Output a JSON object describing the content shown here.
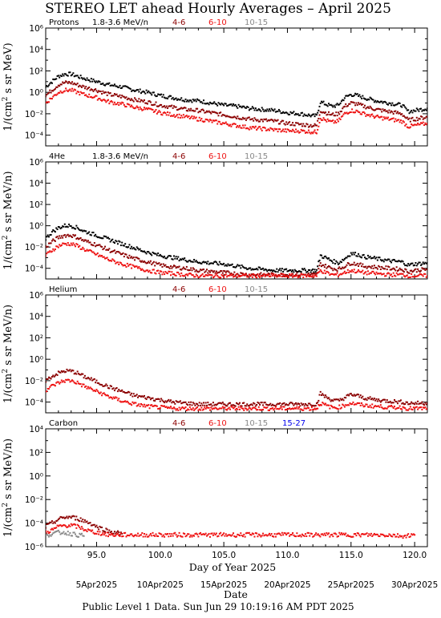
{
  "title": "STEREO LET ahead Hourly Averages – April 2025",
  "footer": "Public Level 1 Data. Sun Jun 29 10:19:16 AM PDT 2025",
  "x_axis": {
    "label": "Day of Year 2025",
    "range": [
      91,
      121
    ],
    "ticks": [
      95.0,
      100.0,
      105.0,
      110.0,
      115.0,
      120.0
    ],
    "tick_labels": [
      "95.0",
      "100.0",
      "105.0",
      "110.0",
      "115.0",
      "120.0"
    ],
    "date_label": "Date",
    "dates": [
      {
        "day": 95,
        "label": "5Apr2025"
      },
      {
        "day": 100,
        "label": "10Apr2025"
      },
      {
        "day": 105,
        "label": "15Apr2025"
      },
      {
        "day": 110,
        "label": "20Apr2025"
      },
      {
        "day": 115,
        "label": "25Apr2025"
      },
      {
        "day": 120,
        "label": "30Apr2025"
      }
    ]
  },
  "colors": {
    "black": "#000000",
    "darkred": "#8b0000",
    "red": "#ee1111",
    "gray": "#888888",
    "blue": "#0000ee"
  },
  "chart_data": [
    {
      "type": "scatter",
      "species": "Protons",
      "ylabel": "1/(cm² s sr MeV)",
      "ylabel_main": "1/(cm",
      "ylabel_sup": "2",
      "ylabel_rest": " s sr MeV)",
      "y_scale": "log",
      "ylim_exp": [
        -5,
        6
      ],
      "y_ticks": [
        "10⁻⁴",
        "10⁻²",
        "10⁰",
        "10²",
        "10⁴",
        "10⁶"
      ],
      "y_tick_exp": [
        -4,
        -2,
        0,
        2,
        4,
        6
      ],
      "legend": [
        {
          "label": "1.8-3.6 MeV/n",
          "color": "#000000"
        },
        {
          "label": "4-6",
          "color": "#8b0000"
        },
        {
          "label": "6-10",
          "color": "#ee1111"
        },
        {
          "label": "10-15",
          "color": "#888888"
        }
      ],
      "series": [
        {
          "name": "1.8-3.6 MeV/n",
          "color": "#000000",
          "x": [
            91,
            91.5,
            92,
            92.5,
            93,
            93.5,
            94,
            95,
            96,
            97,
            98,
            99,
            100,
            101,
            102,
            103,
            104,
            105,
            106,
            107,
            108,
            109,
            110,
            111,
            112,
            112.3,
            112.6,
            113,
            113.5,
            114,
            114.5,
            115,
            115.5,
            116,
            117,
            118,
            119,
            119.5,
            120,
            121
          ],
          "logy": [
            0.5,
            1.0,
            1.5,
            1.7,
            1.7,
            1.5,
            1.3,
            1.0,
            0.7,
            0.5,
            0.2,
            0.0,
            -0.3,
            -0.5,
            -0.7,
            -0.8,
            -1.0,
            -1.2,
            -1.3,
            -1.5,
            -1.6,
            -1.7,
            -1.9,
            -2.0,
            -2.2,
            -2.2,
            -0.9,
            -1.1,
            -1.3,
            -1.2,
            -0.5,
            -0.2,
            -0.3,
            -0.5,
            -0.8,
            -1.0,
            -1.2,
            -1.8,
            -1.7,
            -1.5
          ]
        },
        {
          "name": "4-6",
          "color": "#8b0000",
          "x": [
            91,
            91.5,
            92,
            92.5,
            93,
            93.5,
            94,
            95,
            96,
            97,
            98,
            99,
            100,
            101,
            102,
            103,
            104,
            105,
            106,
            107,
            108,
            109,
            110,
            111,
            112,
            112.3,
            112.6,
            113,
            113.5,
            114,
            114.5,
            115,
            115.5,
            116,
            117,
            118,
            119,
            119.5,
            120,
            121
          ],
          "logy": [
            -0.3,
            0.2,
            0.7,
            0.9,
            0.9,
            0.7,
            0.5,
            0.2,
            -0.2,
            -0.4,
            -0.7,
            -0.9,
            -1.2,
            -1.4,
            -1.6,
            -1.7,
            -1.9,
            -2.1,
            -2.3,
            -2.5,
            -2.6,
            -2.7,
            -2.9,
            -3.0,
            -3.1,
            -3.1,
            -1.7,
            -1.9,
            -2.1,
            -2.0,
            -1.3,
            -1.0,
            -1.1,
            -1.3,
            -1.6,
            -1.8,
            -2.0,
            -2.6,
            -2.5,
            -2.3
          ]
        },
        {
          "name": "6-10",
          "color": "#ee1111",
          "x": [
            91,
            91.5,
            92,
            92.5,
            93,
            93.5,
            94,
            95,
            96,
            97,
            98,
            99,
            100,
            101,
            102,
            103,
            104,
            105,
            106,
            107,
            108,
            109,
            110,
            111,
            112,
            112.3,
            112.6,
            113,
            113.5,
            114,
            114.5,
            115,
            115.5,
            116,
            117,
            118,
            119,
            119.5,
            120,
            121
          ],
          "logy": [
            -1.0,
            -0.5,
            0.0,
            0.2,
            0.2,
            0.0,
            -0.2,
            -0.5,
            -0.9,
            -1.1,
            -1.4,
            -1.6,
            -1.9,
            -2.1,
            -2.3,
            -2.5,
            -2.7,
            -2.9,
            -3.1,
            -3.3,
            -3.4,
            -3.5,
            -3.6,
            -3.6,
            -3.7,
            -3.7,
            -2.4,
            -2.6,
            -2.8,
            -2.7,
            -2.0,
            -1.7,
            -1.8,
            -2.0,
            -2.3,
            -2.5,
            -2.7,
            -3.2,
            -3.1,
            -2.9
          ]
        }
      ]
    },
    {
      "type": "scatter",
      "species": "4He",
      "ylabel": "1/(cm² s sr MeV/n)",
      "ylabel_main": "1/(cm",
      "ylabel_sup": "2",
      "ylabel_rest": " s sr MeV/n)",
      "y_scale": "log",
      "ylim_exp": [
        -5,
        6
      ],
      "y_ticks": [
        "10⁻⁴",
        "10⁻²",
        "10⁰",
        "10²",
        "10⁴",
        "10⁶"
      ],
      "y_tick_exp": [
        -4,
        -2,
        0,
        2,
        4,
        6
      ],
      "legend": [
        {
          "label": "1.8-3.6 MeV/n",
          "color": "#000000"
        },
        {
          "label": "4-6",
          "color": "#8b0000"
        },
        {
          "label": "6-10",
          "color": "#ee1111"
        },
        {
          "label": "10-15",
          "color": "#888888"
        }
      ],
      "series": [
        {
          "name": "1.8-3.6 MeV/n",
          "color": "#000000",
          "x": [
            91,
            91.5,
            92,
            92.5,
            93,
            93.5,
            94,
            95,
            96,
            97,
            98,
            99,
            100,
            101,
            102,
            103,
            104,
            105,
            106,
            107,
            108,
            109,
            110,
            111,
            112,
            112.3,
            112.6,
            113,
            113.5,
            114,
            114.5,
            115,
            115.5,
            116,
            117,
            118,
            119,
            119.5,
            120,
            121
          ],
          "logy": [
            -1.2,
            -0.6,
            -0.2,
            0.0,
            0.0,
            -0.2,
            -0.5,
            -0.9,
            -1.3,
            -1.7,
            -2.1,
            -2.5,
            -2.8,
            -3.0,
            -3.2,
            -3.4,
            -3.5,
            -3.6,
            -3.8,
            -4.0,
            -4.1,
            -4.2,
            -4.2,
            -4.2,
            -4.2,
            -4.2,
            -2.8,
            -3.0,
            -3.3,
            -3.5,
            -3.1,
            -2.6,
            -2.7,
            -2.9,
            -3.1,
            -3.3,
            -3.4,
            -3.7,
            -3.6,
            -3.5
          ]
        },
        {
          "name": "4-6",
          "color": "#8b0000",
          "x": [
            91,
            91.5,
            92,
            92.5,
            93,
            93.5,
            94,
            95,
            96,
            97,
            98,
            99,
            100,
            101,
            102,
            103,
            104,
            105,
            106,
            107,
            108,
            109,
            110,
            111,
            112,
            112.3,
            112.6,
            113,
            113.5,
            114,
            114.5,
            115,
            115.5,
            116,
            117,
            118,
            119,
            119.5,
            120,
            121
          ],
          "logy": [
            -2.0,
            -1.5,
            -1.1,
            -0.9,
            -0.9,
            -1.1,
            -1.4,
            -1.8,
            -2.3,
            -2.7,
            -3.1,
            -3.4,
            -3.7,
            -3.9,
            -4.0,
            -4.2,
            -4.3,
            -4.4,
            -4.5,
            -4.6,
            -4.6,
            -4.6,
            -4.6,
            -4.6,
            -4.6,
            -4.6,
            -3.6,
            -3.8,
            -4.0,
            -4.1,
            -3.8,
            -3.5,
            -3.6,
            -3.8,
            -3.9,
            -4.0,
            -4.1,
            -4.3,
            -4.2,
            -4.1
          ]
        },
        {
          "name": "6-10",
          "color": "#ee1111",
          "x": [
            91,
            91.5,
            92,
            92.5,
            93,
            93.5,
            94,
            95,
            96,
            97,
            98,
            99,
            100,
            101,
            102,
            103,
            104,
            105,
            106,
            107,
            108,
            109,
            110,
            111,
            112,
            112.3,
            112.6,
            113,
            113.5,
            114,
            114.5,
            115,
            115.5,
            116,
            117,
            118,
            119,
            119.5,
            120,
            121
          ],
          "logy": [
            -2.8,
            -2.3,
            -1.9,
            -1.7,
            -1.7,
            -1.9,
            -2.2,
            -2.7,
            -3.2,
            -3.6,
            -3.9,
            -4.2,
            -4.4,
            -4.5,
            -4.6,
            -4.7,
            -4.7,
            -4.7,
            -4.7,
            -4.7,
            -4.7,
            -4.7,
            -4.7,
            -4.7,
            -4.7,
            -4.7,
            -4.2,
            -4.4,
            -4.6,
            -4.6,
            -4.4,
            -4.2,
            -4.3,
            -4.4,
            -4.5,
            -4.6,
            -4.6,
            -4.7,
            -4.7,
            -4.7
          ]
        }
      ]
    },
    {
      "type": "scatter",
      "species": "Helium",
      "ylabel": "1/(cm² s sr MeV/n)",
      "ylabel_main": "1/(cm",
      "ylabel_sup": "2",
      "ylabel_rest": " s sr MeV/n)",
      "y_scale": "log",
      "ylim_exp": [
        -5,
        6
      ],
      "y_ticks": [
        "10⁻⁴",
        "10⁻²",
        "10⁰",
        "10²",
        "10⁴",
        "10⁶"
      ],
      "y_tick_exp": [
        -4,
        -2,
        0,
        2,
        4,
        6
      ],
      "legend": [
        {
          "label": "4-6",
          "color": "#8b0000"
        },
        {
          "label": "6-10",
          "color": "#ee1111"
        },
        {
          "label": "10-15",
          "color": "#888888"
        }
      ],
      "series": [
        {
          "name": "4-6",
          "color": "#8b0000",
          "x": [
            91,
            91.5,
            92,
            92.5,
            93,
            93.5,
            94,
            95,
            96,
            97,
            98,
            99,
            100,
            101,
            102,
            103,
            104,
            105,
            106,
            107,
            108,
            109,
            110,
            111,
            112,
            112.3,
            112.6,
            113,
            113.5,
            114,
            114.5,
            115,
            115.5,
            116,
            117,
            118,
            119,
            119.5,
            120,
            121
          ],
          "logy": [
            -2.0,
            -1.6,
            -1.3,
            -1.1,
            -1.1,
            -1.3,
            -1.6,
            -2.1,
            -2.6,
            -3.0,
            -3.4,
            -3.6,
            -3.8,
            -4.0,
            -4.1,
            -4.2,
            -4.2,
            -4.2,
            -4.2,
            -4.2,
            -4.2,
            -4.2,
            -4.2,
            -4.2,
            -4.2,
            -4.2,
            -3.2,
            -3.5,
            -3.8,
            -3.9,
            -3.6,
            -3.3,
            -3.4,
            -3.6,
            -3.8,
            -3.9,
            -4.0,
            -4.1,
            -4.1,
            -4.1
          ]
        },
        {
          "name": "6-10",
          "color": "#ee1111",
          "x": [
            91,
            91.5,
            92,
            92.5,
            93,
            93.5,
            94,
            95,
            96,
            97,
            98,
            99,
            100,
            101,
            102,
            103,
            104,
            105,
            106,
            107,
            108,
            109,
            110,
            111,
            112,
            112.3,
            112.6,
            113,
            113.5,
            114,
            114.5,
            115,
            115.5,
            116,
            117,
            118,
            119,
            119.5,
            120,
            121
          ],
          "logy": [
            -2.9,
            -2.5,
            -2.2,
            -2.0,
            -2.0,
            -2.2,
            -2.5,
            -3.0,
            -3.5,
            -3.9,
            -4.2,
            -4.4,
            -4.5,
            -4.6,
            -4.6,
            -4.6,
            -4.6,
            -4.6,
            -4.6,
            -4.6,
            -4.6,
            -4.6,
            -4.6,
            -4.6,
            -4.6,
            -4.6,
            -4.1,
            -4.3,
            -4.5,
            -4.5,
            -4.3,
            -4.1,
            -4.2,
            -4.3,
            -4.4,
            -4.5,
            -4.5,
            -4.6,
            -4.6,
            -4.6
          ]
        }
      ]
    },
    {
      "type": "scatter",
      "species": "Carbon",
      "ylabel": "1/(cm² s sr MeV/n)",
      "ylabel_main": "1/(cm",
      "ylabel_sup": "2",
      "ylabel_rest": " s sr MeV/n)",
      "y_scale": "log",
      "ylim_exp": [
        -6,
        4
      ],
      "y_ticks": [
        "10⁻⁶",
        "10⁻⁴",
        "10⁻²",
        "10⁰",
        "10²",
        "10⁴"
      ],
      "y_tick_exp": [
        -6,
        -4,
        -2,
        0,
        2,
        4
      ],
      "legend": [
        {
          "label": "4-6",
          "color": "#8b0000"
        },
        {
          "label": "6-10",
          "color": "#ee1111"
        },
        {
          "label": "10-15",
          "color": "#888888"
        },
        {
          "label": "15-27",
          "color": "#0000ee"
        }
      ],
      "series": [
        {
          "name": "4-6",
          "color": "#8b0000",
          "x": [
            91,
            91.5,
            92,
            92.5,
            93,
            93.5,
            94,
            94.5,
            95,
            95.5,
            96,
            96.5,
            97
          ],
          "logy": [
            -4.3,
            -4.0,
            -3.7,
            -3.5,
            -3.5,
            -3.6,
            -3.8,
            -4.0,
            -4.3,
            -4.5,
            -4.7,
            -4.8,
            -4.9
          ]
        },
        {
          "name": "6-10",
          "color": "#ee1111",
          "x": [
            91,
            91.5,
            92,
            92.5,
            93,
            93.5,
            94,
            94.5,
            95,
            95.5,
            96,
            97,
            98,
            99,
            100,
            106,
            112.5,
            113,
            114,
            115,
            116,
            117,
            118,
            119,
            120
          ],
          "logy": [
            -4.8,
            -4.6,
            -4.3,
            -4.2,
            -4.2,
            -4.3,
            -4.5,
            -4.7,
            -4.8,
            -4.9,
            -5.0,
            -5.0,
            -5.0,
            -5.0,
            -5.0,
            -5.0,
            -5.0,
            -5.0,
            -5.0,
            -5.0,
            -5.0,
            -5.0,
            -5.0,
            -5.1,
            -5.0
          ]
        },
        {
          "name": "10-15",
          "color": "#888888",
          "x": [
            91,
            91.5,
            92,
            92.5,
            93,
            93.5,
            94
          ],
          "logy": [
            -5.1,
            -4.9,
            -4.8,
            -4.8,
            -4.9,
            -5.0,
            -5.1
          ]
        }
      ]
    }
  ]
}
